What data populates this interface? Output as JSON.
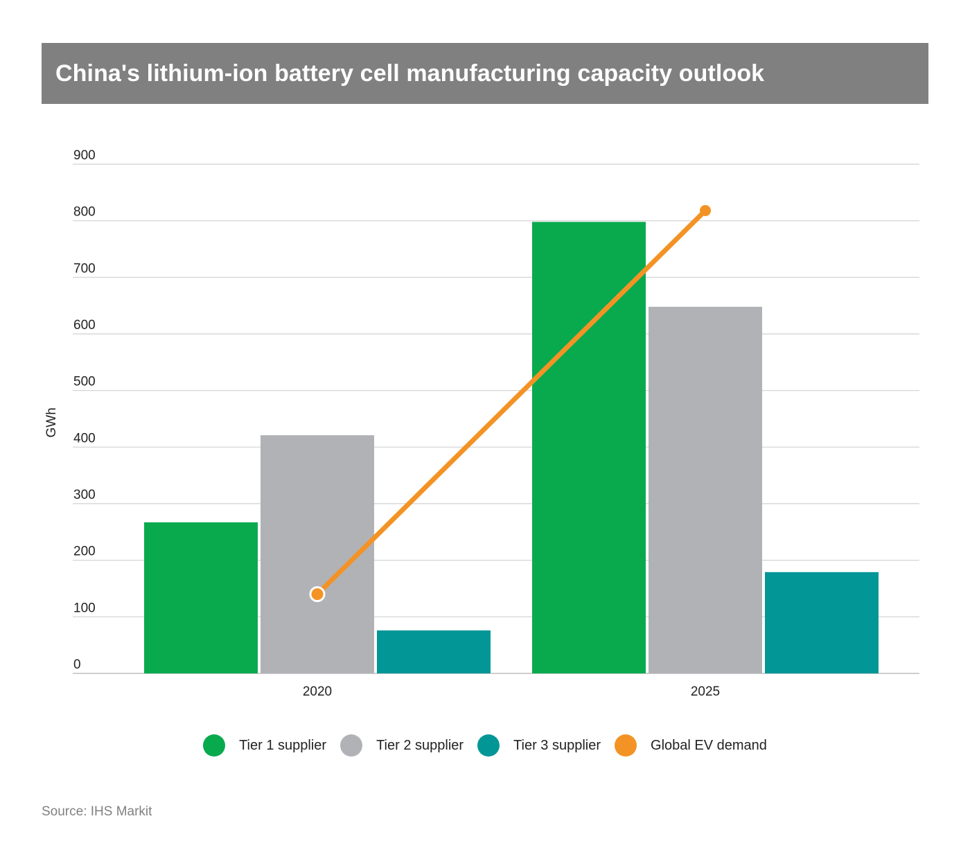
{
  "chart_data": {
    "type": "bar",
    "title": "China's lithium-ion battery cell manufacturing capacity outlook",
    "ylabel": "GWh",
    "xlabel": "",
    "categories": [
      "2020",
      "2025"
    ],
    "ylim": [
      0,
      900
    ],
    "yticks": [
      "0",
      "100",
      "200",
      "300",
      "400",
      "500",
      "600",
      "700",
      "800",
      "900"
    ],
    "grid": true,
    "legend_position": "bottom",
    "series": [
      {
        "name": "Tier 1 supplier",
        "type": "bar",
        "values": [
          267,
          798
        ],
        "color": "#09AA4E"
      },
      {
        "name": "Tier 2 supplier",
        "type": "bar",
        "values": [
          421,
          648
        ],
        "color": "#B1B2B5"
      },
      {
        "name": "Tier 3 supplier",
        "type": "bar",
        "values": [
          76,
          179
        ],
        "color": "#029697"
      },
      {
        "name": "Global EV demand",
        "type": "line",
        "values": [
          140,
          818
        ],
        "color": "#F39325"
      }
    ],
    "source": "Source: IHS Markit"
  }
}
